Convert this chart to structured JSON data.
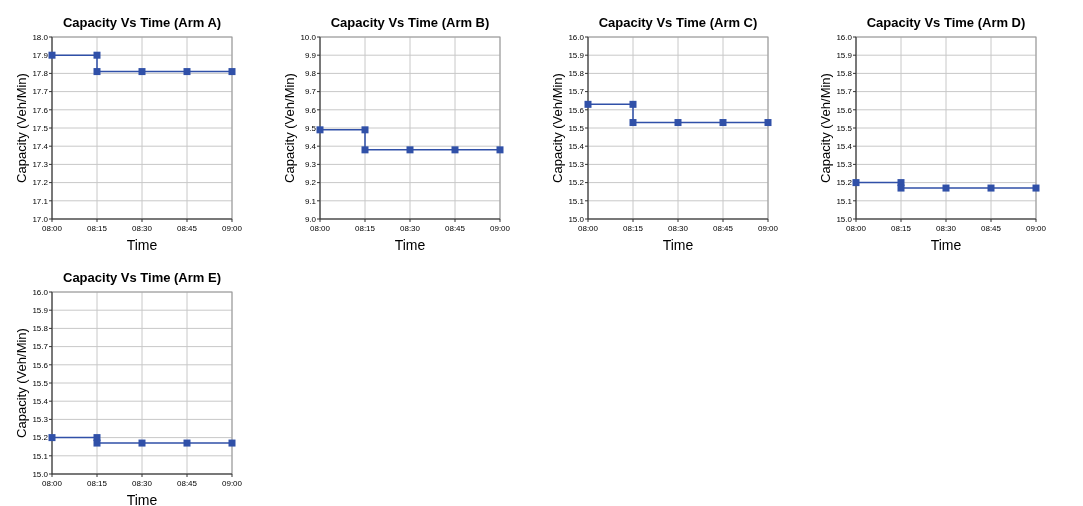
{
  "chart_data": [
    {
      "type": "line",
      "title": "Capacity Vs Time (Arm A)",
      "xlabel": "Time",
      "ylabel": "Capacity (Veh/Min)",
      "x": [
        8,
        8.25,
        8.25,
        8.5,
        8.75,
        9
      ],
      "series": [
        {
          "color": "#3050a8",
          "values": [
            17.9,
            17.9,
            17.81,
            17.81,
            17.81,
            17.81
          ]
        }
      ],
      "xlim": [
        8,
        9
      ],
      "xticks": [
        {
          "value": 8,
          "label": "08:00"
        },
        {
          "value": 8.25,
          "label": "08:15"
        },
        {
          "value": 8.5,
          "label": "08:30"
        },
        {
          "value": 8.75,
          "label": "08:45"
        },
        {
          "value": 9,
          "label": "09:00"
        }
      ],
      "ylim": [
        17,
        18
      ],
      "yticks": [
        {
          "value": 17,
          "label": "17.0"
        },
        17.1,
        17.2,
        17.3,
        17.4,
        17.5,
        17.6,
        17.7,
        17.8,
        17.9,
        {
          "value": 18,
          "label": "18.0"
        }
      ],
      "grid": true,
      "marker": "square",
      "line_style": "solid"
    },
    {
      "type": "line",
      "title": "Capacity Vs Time (Arm B)",
      "xlabel": "Time",
      "ylabel": "Capacity (Veh/Min)",
      "x": [
        8,
        8.25,
        8.25,
        8.5,
        8.75,
        9
      ],
      "series": [
        {
          "color": "#3050a8",
          "values": [
            9.49,
            9.49,
            9.38,
            9.38,
            9.38,
            9.38
          ]
        }
      ],
      "xlim": [
        8,
        9
      ],
      "xticks": [
        {
          "value": 8,
          "label": "08:00"
        },
        {
          "value": 8.25,
          "label": "08:15"
        },
        {
          "value": 8.5,
          "label": "08:30"
        },
        {
          "value": 8.75,
          "label": "08:45"
        },
        {
          "value": 9,
          "label": "09:00"
        }
      ],
      "ylim": [
        9,
        10
      ],
      "yticks": [
        {
          "value": 9,
          "label": "9.0"
        },
        9.1,
        9.2,
        9.3,
        9.4,
        9.5,
        9.6,
        9.7,
        9.8,
        9.9,
        {
          "value": 10,
          "label": "10.0"
        }
      ],
      "grid": true,
      "marker": "square",
      "line_style": "solid"
    },
    {
      "type": "line",
      "title": "Capacity Vs Time (Arm C)",
      "xlabel": "Time",
      "ylabel": "Capacity (Veh/Min)",
      "x": [
        8,
        8.25,
        8.25,
        8.5,
        8.75,
        9
      ],
      "series": [
        {
          "color": "#3050a8",
          "values": [
            15.63,
            15.63,
            15.53,
            15.53,
            15.53,
            15.53
          ]
        }
      ],
      "xlim": [
        8,
        9
      ],
      "xticks": [
        {
          "value": 8,
          "label": "08:00"
        },
        {
          "value": 8.25,
          "label": "08:15"
        },
        {
          "value": 8.5,
          "label": "08:30"
        },
        {
          "value": 8.75,
          "label": "08:45"
        },
        {
          "value": 9,
          "label": "09:00"
        }
      ],
      "ylim": [
        15,
        16
      ],
      "yticks": [
        {
          "value": 15,
          "label": "15.0"
        },
        15.1,
        15.2,
        15.3,
        15.4,
        15.5,
        15.6,
        15.7,
        15.8,
        15.9,
        {
          "value": 16,
          "label": "16.0"
        }
      ],
      "grid": true,
      "marker": "square",
      "line_style": "solid"
    },
    {
      "type": "line",
      "title": "Capacity Vs Time (Arm D)",
      "xlabel": "Time",
      "ylabel": "Capacity (Veh/Min)",
      "x": [
        8,
        8.25,
        8.25,
        8.5,
        8.75,
        9
      ],
      "series": [
        {
          "color": "#3050a8",
          "values": [
            15.2,
            15.2,
            15.17,
            15.17,
            15.17,
            15.17
          ]
        }
      ],
      "xlim": [
        8,
        9
      ],
      "xticks": [
        {
          "value": 8,
          "label": "08:00"
        },
        {
          "value": 8.25,
          "label": "08:15"
        },
        {
          "value": 8.5,
          "label": "08:30"
        },
        {
          "value": 8.75,
          "label": "08:45"
        },
        {
          "value": 9,
          "label": "09:00"
        }
      ],
      "ylim": [
        15,
        16
      ],
      "yticks": [
        {
          "value": 15,
          "label": "15.0"
        },
        15.1,
        15.2,
        15.3,
        15.4,
        15.5,
        15.6,
        15.7,
        15.8,
        15.9,
        {
          "value": 16,
          "label": "16.0"
        }
      ],
      "grid": true,
      "marker": "square",
      "line_style": "solid"
    },
    {
      "type": "line",
      "title": "Capacity Vs Time (Arm E)",
      "xlabel": "Time",
      "ylabel": "Capacity (Veh/Min)",
      "x": [
        8,
        8.25,
        8.25,
        8.5,
        8.75,
        9
      ],
      "series": [
        {
          "color": "#3050a8",
          "values": [
            15.2,
            15.2,
            15.17,
            15.17,
            15.17,
            15.17
          ]
        }
      ],
      "xlim": [
        8,
        9
      ],
      "xticks": [
        {
          "value": 8,
          "label": "08:00"
        },
        {
          "value": 8.25,
          "label": "08:15"
        },
        {
          "value": 8.5,
          "label": "08:30"
        },
        {
          "value": 8.75,
          "label": "08:45"
        },
        {
          "value": 9,
          "label": "09:00"
        }
      ],
      "ylim": [
        15,
        16
      ],
      "yticks": [
        {
          "value": 15,
          "label": "15.0"
        },
        15.1,
        15.2,
        15.3,
        15.4,
        15.5,
        15.6,
        15.7,
        15.8,
        15.9,
        {
          "value": 16,
          "label": "16.0"
        }
      ],
      "grid": true,
      "marker": "square",
      "line_style": "solid"
    }
  ]
}
